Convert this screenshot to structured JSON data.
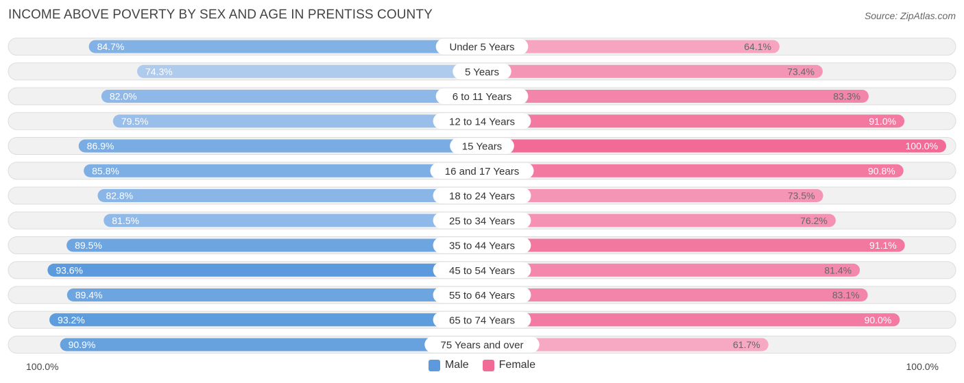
{
  "title": "INCOME ABOVE POVERTY BY SEX AND AGE IN PRENTISS COUNTY",
  "source": "Source: ZipAtlas.com",
  "colors": {
    "male_light": "#aecbee",
    "male_dark": "#5b9bdd",
    "female_light": "#f7a8c3",
    "female_dark": "#f26a96",
    "track": "#f1f1f1",
    "track_border": "#dddddd"
  },
  "legend": {
    "male": "Male",
    "female": "Female"
  },
  "axis": {
    "left": "100.0%",
    "right": "100.0%"
  },
  "chart_data": {
    "type": "bar",
    "orientation": "horizontal-diverging",
    "title": "INCOME ABOVE POVERTY BY SEX AND AGE IN PRENTISS COUNTY",
    "categories": [
      "Under 5 Years",
      "5 Years",
      "6 to 11 Years",
      "12 to 14 Years",
      "15 Years",
      "16 and 17 Years",
      "18 to 24 Years",
      "25 to 34 Years",
      "35 to 44 Years",
      "45 to 54 Years",
      "55 to 64 Years",
      "65 to 74 Years",
      "75 Years and over"
    ],
    "series": [
      {
        "name": "Male",
        "values": [
          84.7,
          74.3,
          82.0,
          79.5,
          86.9,
          85.8,
          82.8,
          81.5,
          89.5,
          93.6,
          89.4,
          93.2,
          90.9
        ],
        "labels": [
          "84.7%",
          "74.3%",
          "82.0%",
          "79.5%",
          "86.9%",
          "85.8%",
          "82.8%",
          "81.5%",
          "89.5%",
          "93.6%",
          "89.4%",
          "93.2%",
          "90.9%"
        ]
      },
      {
        "name": "Female",
        "values": [
          64.1,
          73.4,
          83.3,
          91.0,
          100.0,
          90.8,
          73.5,
          76.2,
          91.1,
          81.4,
          83.1,
          90.0,
          61.7
        ],
        "labels": [
          "64.1%",
          "73.4%",
          "83.3%",
          "91.0%",
          "100.0%",
          "90.8%",
          "73.5%",
          "76.2%",
          "91.1%",
          "81.4%",
          "83.1%",
          "90.0%",
          "61.7%"
        ]
      }
    ],
    "xlim": [
      0,
      100
    ],
    "xlabel_left": "100.0%",
    "xlabel_right": "100.0%",
    "legend_position": "bottom-center"
  }
}
